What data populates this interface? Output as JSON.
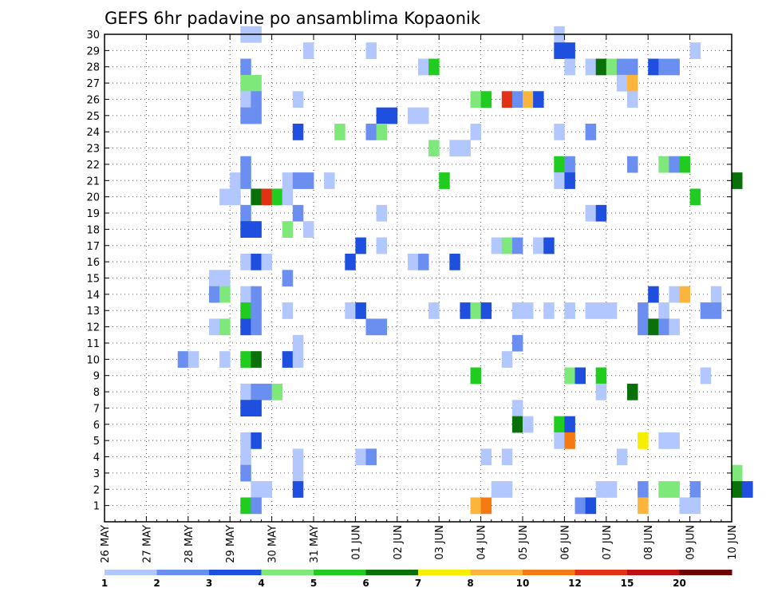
{
  "chart_data": {
    "type": "heatmap",
    "title": "GEFS 6hr padavine po ansamblima Kopaonik",
    "xlabel": "",
    "ylabel": "",
    "y_ticks": [
      "1",
      "2",
      "3",
      "4",
      "5",
      "6",
      "7",
      "8",
      "9",
      "10",
      "11",
      "12",
      "13",
      "14",
      "15",
      "16",
      "17",
      "18",
      "19",
      "20",
      "21",
      "22",
      "23",
      "24",
      "25",
      "26",
      "27",
      "28",
      "29",
      "30"
    ],
    "x_ticks": [
      "26 MAY",
      "27 MAY",
      "28 MAY",
      "29 MAY",
      "30 MAY",
      "31 MAY",
      "01 JUN",
      "02 JUN",
      "03 JUN",
      "04 JUN",
      "05 JUN",
      "06 JUN",
      "07 JUN",
      "08 JUN",
      "09 JUN",
      "10 JUN"
    ],
    "x_range_days": [
      0,
      15
    ],
    "y_range": [
      0,
      30
    ],
    "grid": true,
    "colorbar": {
      "labels": [
        "1",
        "2",
        "3",
        "4",
        "5",
        "6",
        "7",
        "8",
        "10",
        "12",
        "15",
        "20"
      ],
      "colors": [
        "#b3c7ff",
        "#6a8ff0",
        "#1f4fdf",
        "#7fe87a",
        "#1fcc1f",
        "#0a700a",
        "#f7ef00",
        "#fbb43c",
        "#f57a14",
        "#e13216",
        "#bd1010",
        "#6e0000"
      ]
    },
    "cells": [
      {
        "day": 3.25,
        "ens": 30,
        "c": 0
      },
      {
        "day": 3.5,
        "ens": 30,
        "c": 0
      },
      {
        "day": 10.75,
        "ens": 30,
        "c": 0
      },
      {
        "day": 4.75,
        "ens": 29,
        "c": 0
      },
      {
        "day": 6.25,
        "ens": 29,
        "c": 0
      },
      {
        "day": 10.75,
        "ens": 29,
        "c": 2
      },
      {
        "day": 11.0,
        "ens": 29,
        "c": 2
      },
      {
        "day": 14.0,
        "ens": 29,
        "c": 0
      },
      {
        "day": 3.25,
        "ens": 28,
        "c": 1
      },
      {
        "day": 7.5,
        "ens": 28,
        "c": 0
      },
      {
        "day": 7.75,
        "ens": 28,
        "c": 4
      },
      {
        "day": 11.0,
        "ens": 28,
        "c": 0
      },
      {
        "day": 11.5,
        "ens": 28,
        "c": 0
      },
      {
        "day": 11.75,
        "ens": 28,
        "c": 5
      },
      {
        "day": 12.0,
        "ens": 28,
        "c": 3
      },
      {
        "day": 12.25,
        "ens": 28,
        "c": 1
      },
      {
        "day": 12.5,
        "ens": 28,
        "c": 1
      },
      {
        "day": 13.0,
        "ens": 28,
        "c": 2
      },
      {
        "day": 13.25,
        "ens": 28,
        "c": 1
      },
      {
        "day": 13.5,
        "ens": 28,
        "c": 1
      },
      {
        "day": 3.25,
        "ens": 27,
        "c": 3
      },
      {
        "day": 3.5,
        "ens": 27,
        "c": 3
      },
      {
        "day": 12.25,
        "ens": 27,
        "c": 0
      },
      {
        "day": 12.5,
        "ens": 27,
        "c": 7
      },
      {
        "day": 3.25,
        "ens": 26,
        "c": 0
      },
      {
        "day": 3.5,
        "ens": 26,
        "c": 1
      },
      {
        "day": 4.5,
        "ens": 26,
        "c": 0
      },
      {
        "day": 8.75,
        "ens": 26,
        "c": 3
      },
      {
        "day": 9.0,
        "ens": 26,
        "c": 4
      },
      {
        "day": 9.5,
        "ens": 26,
        "c": 9
      },
      {
        "day": 9.75,
        "ens": 26,
        "c": 1
      },
      {
        "day": 10.0,
        "ens": 26,
        "c": 7
      },
      {
        "day": 10.25,
        "ens": 26,
        "c": 2
      },
      {
        "day": 12.5,
        "ens": 26,
        "c": 0
      },
      {
        "day": 3.25,
        "ens": 25,
        "c": 1
      },
      {
        "day": 3.5,
        "ens": 25,
        "c": 1
      },
      {
        "day": 6.5,
        "ens": 25,
        "c": 2
      },
      {
        "day": 6.75,
        "ens": 25,
        "c": 2
      },
      {
        "day": 7.25,
        "ens": 25,
        "c": 0
      },
      {
        "day": 7.5,
        "ens": 25,
        "c": 0
      },
      {
        "day": 4.5,
        "ens": 24,
        "c": 2
      },
      {
        "day": 5.5,
        "ens": 24,
        "c": 3
      },
      {
        "day": 6.25,
        "ens": 24,
        "c": 1
      },
      {
        "day": 6.5,
        "ens": 24,
        "c": 3
      },
      {
        "day": 8.75,
        "ens": 24,
        "c": 0
      },
      {
        "day": 10.75,
        "ens": 24,
        "c": 0
      },
      {
        "day": 11.5,
        "ens": 24,
        "c": 1
      },
      {
        "day": 7.75,
        "ens": 23,
        "c": 3
      },
      {
        "day": 8.25,
        "ens": 23,
        "c": 0
      },
      {
        "day": 8.5,
        "ens": 23,
        "c": 0
      },
      {
        "day": 3.25,
        "ens": 22,
        "c": 1
      },
      {
        "day": 10.75,
        "ens": 22,
        "c": 4
      },
      {
        "day": 11.0,
        "ens": 22,
        "c": 1
      },
      {
        "day": 12.5,
        "ens": 22,
        "c": 1
      },
      {
        "day": 13.25,
        "ens": 22,
        "c": 3
      },
      {
        "day": 13.5,
        "ens": 22,
        "c": 1
      },
      {
        "day": 13.75,
        "ens": 22,
        "c": 4
      },
      {
        "day": 3.0,
        "ens": 21,
        "c": 0
      },
      {
        "day": 3.25,
        "ens": 21,
        "c": 1
      },
      {
        "day": 4.25,
        "ens": 21,
        "c": 0
      },
      {
        "day": 4.5,
        "ens": 21,
        "c": 1
      },
      {
        "day": 4.75,
        "ens": 21,
        "c": 1
      },
      {
        "day": 5.25,
        "ens": 21,
        "c": 0
      },
      {
        "day": 8.0,
        "ens": 21,
        "c": 4
      },
      {
        "day": 10.75,
        "ens": 21,
        "c": 0
      },
      {
        "day": 11.0,
        "ens": 21,
        "c": 2
      },
      {
        "day": 15.0,
        "ens": 21,
        "c": 5
      },
      {
        "day": 2.75,
        "ens": 20,
        "c": 0
      },
      {
        "day": 3.0,
        "ens": 20,
        "c": 0
      },
      {
        "day": 3.5,
        "ens": 20,
        "c": 5
      },
      {
        "day": 3.75,
        "ens": 20,
        "c": 9
      },
      {
        "day": 4.0,
        "ens": 20,
        "c": 4
      },
      {
        "day": 4.25,
        "ens": 20,
        "c": 0
      },
      {
        "day": 14.0,
        "ens": 20,
        "c": 4
      },
      {
        "day": 3.25,
        "ens": 19,
        "c": 1
      },
      {
        "day": 4.5,
        "ens": 19,
        "c": 1
      },
      {
        "day": 6.5,
        "ens": 19,
        "c": 0
      },
      {
        "day": 11.5,
        "ens": 19,
        "c": 0
      },
      {
        "day": 11.75,
        "ens": 19,
        "c": 2
      },
      {
        "day": 3.25,
        "ens": 18,
        "c": 2
      },
      {
        "day": 3.5,
        "ens": 18,
        "c": 2
      },
      {
        "day": 4.25,
        "ens": 18,
        "c": 3
      },
      {
        "day": 4.75,
        "ens": 18,
        "c": 0
      },
      {
        "day": 6.0,
        "ens": 17,
        "c": 2
      },
      {
        "day": 6.5,
        "ens": 17,
        "c": 0
      },
      {
        "day": 9.25,
        "ens": 17,
        "c": 0
      },
      {
        "day": 9.5,
        "ens": 17,
        "c": 3
      },
      {
        "day": 9.75,
        "ens": 17,
        "c": 1
      },
      {
        "day": 10.25,
        "ens": 17,
        "c": 0
      },
      {
        "day": 10.5,
        "ens": 17,
        "c": 2
      },
      {
        "day": 3.25,
        "ens": 16,
        "c": 0
      },
      {
        "day": 3.5,
        "ens": 16,
        "c": 2
      },
      {
        "day": 3.75,
        "ens": 16,
        "c": 0
      },
      {
        "day": 5.75,
        "ens": 16,
        "c": 2
      },
      {
        "day": 7.25,
        "ens": 16,
        "c": 0
      },
      {
        "day": 7.5,
        "ens": 16,
        "c": 1
      },
      {
        "day": 8.25,
        "ens": 16,
        "c": 2
      },
      {
        "day": 2.5,
        "ens": 15,
        "c": 0
      },
      {
        "day": 2.75,
        "ens": 15,
        "c": 0
      },
      {
        "day": 4.25,
        "ens": 15,
        "c": 1
      },
      {
        "day": 2.5,
        "ens": 14,
        "c": 1
      },
      {
        "day": 2.75,
        "ens": 14,
        "c": 3
      },
      {
        "day": 3.25,
        "ens": 14,
        "c": 0
      },
      {
        "day": 3.5,
        "ens": 14,
        "c": 1
      },
      {
        "day": 13.0,
        "ens": 14,
        "c": 2
      },
      {
        "day": 13.5,
        "ens": 14,
        "c": 0
      },
      {
        "day": 13.75,
        "ens": 14,
        "c": 7
      },
      {
        "day": 14.5,
        "ens": 14,
        "c": 0
      },
      {
        "day": 3.25,
        "ens": 13,
        "c": 4
      },
      {
        "day": 3.5,
        "ens": 13,
        "c": 1
      },
      {
        "day": 4.25,
        "ens": 13,
        "c": 0
      },
      {
        "day": 5.75,
        "ens": 13,
        "c": 0
      },
      {
        "day": 6.0,
        "ens": 13,
        "c": 2
      },
      {
        "day": 7.75,
        "ens": 13,
        "c": 0
      },
      {
        "day": 8.5,
        "ens": 13,
        "c": 2
      },
      {
        "day": 8.75,
        "ens": 13,
        "c": 3
      },
      {
        "day": 9.0,
        "ens": 13,
        "c": 2
      },
      {
        "day": 9.75,
        "ens": 13,
        "c": 0
      },
      {
        "day": 10.0,
        "ens": 13,
        "c": 0
      },
      {
        "day": 10.5,
        "ens": 13,
        "c": 0
      },
      {
        "day": 11.0,
        "ens": 13,
        "c": 0
      },
      {
        "day": 11.5,
        "ens": 13,
        "c": 0
      },
      {
        "day": 11.75,
        "ens": 13,
        "c": 0
      },
      {
        "day": 12.0,
        "ens": 13,
        "c": 0
      },
      {
        "day": 12.75,
        "ens": 13,
        "c": 1
      },
      {
        "day": 13.25,
        "ens": 13,
        "c": 0
      },
      {
        "day": 14.25,
        "ens": 13,
        "c": 1
      },
      {
        "day": 14.5,
        "ens": 13,
        "c": 1
      },
      {
        "day": 2.5,
        "ens": 12,
        "c": 0
      },
      {
        "day": 2.75,
        "ens": 12,
        "c": 3
      },
      {
        "day": 3.25,
        "ens": 12,
        "c": 2
      },
      {
        "day": 3.5,
        "ens": 12,
        "c": 1
      },
      {
        "day": 6.25,
        "ens": 12,
        "c": 1
      },
      {
        "day": 6.5,
        "ens": 12,
        "c": 1
      },
      {
        "day": 12.75,
        "ens": 12,
        "c": 1
      },
      {
        "day": 13.0,
        "ens": 12,
        "c": 5
      },
      {
        "day": 13.25,
        "ens": 12,
        "c": 1
      },
      {
        "day": 13.5,
        "ens": 12,
        "c": 0
      },
      {
        "day": 4.5,
        "ens": 11,
        "c": 0
      },
      {
        "day": 9.75,
        "ens": 11,
        "c": 1
      },
      {
        "day": 1.75,
        "ens": 10,
        "c": 1
      },
      {
        "day": 2.0,
        "ens": 10,
        "c": 0
      },
      {
        "day": 2.75,
        "ens": 10,
        "c": 0
      },
      {
        "day": 3.25,
        "ens": 10,
        "c": 4
      },
      {
        "day": 3.5,
        "ens": 10,
        "c": 5
      },
      {
        "day": 4.25,
        "ens": 10,
        "c": 2
      },
      {
        "day": 4.5,
        "ens": 10,
        "c": 0
      },
      {
        "day": 9.5,
        "ens": 10,
        "c": 0
      },
      {
        "day": 8.75,
        "ens": 9,
        "c": 4
      },
      {
        "day": 11.0,
        "ens": 9,
        "c": 3
      },
      {
        "day": 11.25,
        "ens": 9,
        "c": 2
      },
      {
        "day": 11.75,
        "ens": 9,
        "c": 4
      },
      {
        "day": 14.25,
        "ens": 9,
        "c": 0
      },
      {
        "day": 3.25,
        "ens": 8,
        "c": 0
      },
      {
        "day": 3.5,
        "ens": 8,
        "c": 1
      },
      {
        "day": 3.75,
        "ens": 8,
        "c": 1
      },
      {
        "day": 4.0,
        "ens": 8,
        "c": 3
      },
      {
        "day": 11.75,
        "ens": 8,
        "c": 0
      },
      {
        "day": 12.5,
        "ens": 8,
        "c": 5
      },
      {
        "day": 3.25,
        "ens": 7,
        "c": 2
      },
      {
        "day": 3.5,
        "ens": 7,
        "c": 2
      },
      {
        "day": 9.75,
        "ens": 7,
        "c": 0
      },
      {
        "day": 9.75,
        "ens": 6,
        "c": 5
      },
      {
        "day": 10.0,
        "ens": 6,
        "c": 0
      },
      {
        "day": 10.75,
        "ens": 6,
        "c": 4
      },
      {
        "day": 11.0,
        "ens": 6,
        "c": 2
      },
      {
        "day": 3.25,
        "ens": 5,
        "c": 0
      },
      {
        "day": 3.5,
        "ens": 5,
        "c": 2
      },
      {
        "day": 10.75,
        "ens": 5,
        "c": 0
      },
      {
        "day": 11.0,
        "ens": 5,
        "c": 8
      },
      {
        "day": 12.75,
        "ens": 5,
        "c": 6
      },
      {
        "day": 13.25,
        "ens": 5,
        "c": 0
      },
      {
        "day": 13.5,
        "ens": 5,
        "c": 0
      },
      {
        "day": 3.25,
        "ens": 4,
        "c": 0
      },
      {
        "day": 4.5,
        "ens": 4,
        "c": 0
      },
      {
        "day": 6.0,
        "ens": 4,
        "c": 0
      },
      {
        "day": 6.25,
        "ens": 4,
        "c": 1
      },
      {
        "day": 9.0,
        "ens": 4,
        "c": 0
      },
      {
        "day": 9.5,
        "ens": 4,
        "c": 0
      },
      {
        "day": 12.25,
        "ens": 4,
        "c": 0
      },
      {
        "day": 3.25,
        "ens": 3,
        "c": 1
      },
      {
        "day": 4.5,
        "ens": 3,
        "c": 0
      },
      {
        "day": 15.0,
        "ens": 3,
        "c": 3
      },
      {
        "day": 3.5,
        "ens": 2,
        "c": 0
      },
      {
        "day": 3.75,
        "ens": 2,
        "c": 0
      },
      {
        "day": 4.5,
        "ens": 2,
        "c": 2
      },
      {
        "day": 9.25,
        "ens": 2,
        "c": 0
      },
      {
        "day": 9.5,
        "ens": 2,
        "c": 0
      },
      {
        "day": 11.75,
        "ens": 2,
        "c": 0
      },
      {
        "day": 12.0,
        "ens": 2,
        "c": 0
      },
      {
        "day": 12.75,
        "ens": 2,
        "c": 1
      },
      {
        "day": 13.25,
        "ens": 2,
        "c": 3
      },
      {
        "day": 13.5,
        "ens": 2,
        "c": 3
      },
      {
        "day": 14.0,
        "ens": 2,
        "c": 1
      },
      {
        "day": 15.0,
        "ens": 2,
        "c": 5
      },
      {
        "day": 15.25,
        "ens": 2,
        "c": 2
      },
      {
        "day": 3.25,
        "ens": 1,
        "c": 4
      },
      {
        "day": 3.5,
        "ens": 1,
        "c": 1
      },
      {
        "day": 8.75,
        "ens": 1,
        "c": 7
      },
      {
        "day": 9.0,
        "ens": 1,
        "c": 8
      },
      {
        "day": 11.25,
        "ens": 1,
        "c": 1
      },
      {
        "day": 11.5,
        "ens": 1,
        "c": 2
      },
      {
        "day": 12.75,
        "ens": 1,
        "c": 7
      },
      {
        "day": 13.75,
        "ens": 1,
        "c": 0
      },
      {
        "day": 14.0,
        "ens": 1,
        "c": 0
      }
    ]
  }
}
